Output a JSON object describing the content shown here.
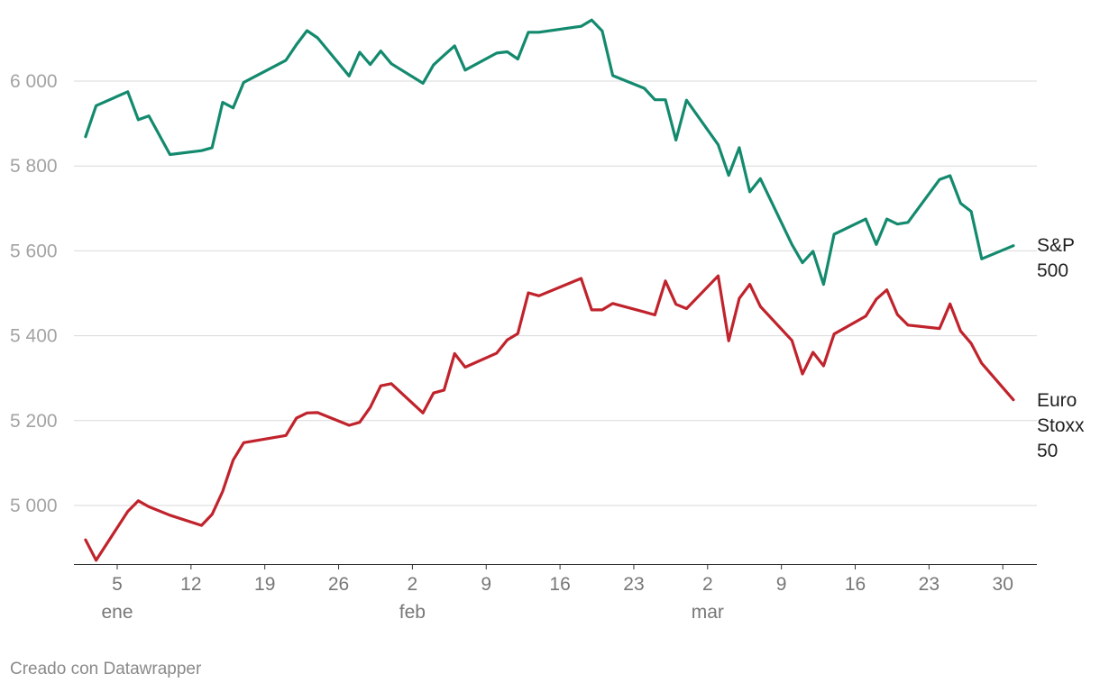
{
  "chart_data": {
    "type": "line",
    "title": "",
    "xlabel": "",
    "ylabel": "",
    "ylim": [
      4850,
      6150
    ],
    "y_ticks": [
      5000,
      5200,
      5400,
      5600,
      5800,
      6000
    ],
    "y_tick_labels": [
      "5 000",
      "5 200",
      "5 400",
      "5 600",
      "5 800",
      "6 000"
    ],
    "x_range": [
      "2025-01-02",
      "2025-03-31"
    ],
    "x_ticks": [
      {
        "date": "2025-01-05",
        "label": "5",
        "month": "ene"
      },
      {
        "date": "2025-01-12",
        "label": "12",
        "month": ""
      },
      {
        "date": "2025-01-19",
        "label": "19",
        "month": ""
      },
      {
        "date": "2025-01-26",
        "label": "26",
        "month": ""
      },
      {
        "date": "2025-02-02",
        "label": "2",
        "month": "feb"
      },
      {
        "date": "2025-02-09",
        "label": "9",
        "month": ""
      },
      {
        "date": "2025-02-16",
        "label": "16",
        "month": ""
      },
      {
        "date": "2025-02-23",
        "label": "23",
        "month": ""
      },
      {
        "date": "2025-03-02",
        "label": "2",
        "month": "mar"
      },
      {
        "date": "2025-03-09",
        "label": "9",
        "month": ""
      },
      {
        "date": "2025-03-16",
        "label": "16",
        "month": ""
      },
      {
        "date": "2025-03-23",
        "label": "23",
        "month": ""
      },
      {
        "date": "2025-03-30",
        "label": "30",
        "month": ""
      }
    ],
    "grid": true,
    "series": [
      {
        "name": "S&P 500",
        "label_lines": [
          "S&P",
          "500"
        ],
        "color": "#138a6e",
        "points": [
          [
            "2025-01-02",
            5869
          ],
          [
            "2025-01-03",
            5942
          ],
          [
            "2025-01-06",
            5975
          ],
          [
            "2025-01-07",
            5909
          ],
          [
            "2025-01-08",
            5918
          ],
          [
            "2025-01-10",
            5827
          ],
          [
            "2025-01-13",
            5836
          ],
          [
            "2025-01-14",
            5843
          ],
          [
            "2025-01-15",
            5950
          ],
          [
            "2025-01-16",
            5937
          ],
          [
            "2025-01-17",
            5997
          ],
          [
            "2025-01-21",
            6049
          ],
          [
            "2025-01-22",
            6086
          ],
          [
            "2025-01-23",
            6119
          ],
          [
            "2025-01-24",
            6102
          ],
          [
            "2025-01-27",
            6012
          ],
          [
            "2025-01-28",
            6068
          ],
          [
            "2025-01-29",
            6039
          ],
          [
            "2025-01-30",
            6071
          ],
          [
            "2025-01-31",
            6041
          ],
          [
            "2025-02-03",
            5995
          ],
          [
            "2025-02-04",
            6038
          ],
          [
            "2025-02-05",
            6061
          ],
          [
            "2025-02-06",
            6083
          ],
          [
            "2025-02-07",
            6026
          ],
          [
            "2025-02-10",
            6066
          ],
          [
            "2025-02-11",
            6069
          ],
          [
            "2025-02-12",
            6052
          ],
          [
            "2025-02-13",
            6115
          ],
          [
            "2025-02-14",
            6115
          ],
          [
            "2025-02-18",
            6129
          ],
          [
            "2025-02-19",
            6144
          ],
          [
            "2025-02-20",
            6118
          ],
          [
            "2025-02-21",
            6013
          ],
          [
            "2025-02-24",
            5983
          ],
          [
            "2025-02-25",
            5956
          ],
          [
            "2025-02-26",
            5956
          ],
          [
            "2025-02-27",
            5861
          ],
          [
            "2025-02-28",
            5955
          ],
          [
            "2025-03-03",
            5850
          ],
          [
            "2025-03-04",
            5778
          ],
          [
            "2025-03-05",
            5843
          ],
          [
            "2025-03-06",
            5739
          ],
          [
            "2025-03-07",
            5770
          ],
          [
            "2025-03-10",
            5615
          ],
          [
            "2025-03-11",
            5572
          ],
          [
            "2025-03-12",
            5599
          ],
          [
            "2025-03-13",
            5521
          ],
          [
            "2025-03-14",
            5639
          ],
          [
            "2025-03-17",
            5675
          ],
          [
            "2025-03-18",
            5615
          ],
          [
            "2025-03-19",
            5675
          ],
          [
            "2025-03-20",
            5663
          ],
          [
            "2025-03-21",
            5667
          ],
          [
            "2025-03-24",
            5768
          ],
          [
            "2025-03-25",
            5777
          ],
          [
            "2025-03-26",
            5712
          ],
          [
            "2025-03-27",
            5693
          ],
          [
            "2025-03-28",
            5581
          ],
          [
            "2025-03-31",
            5612
          ]
        ]
      },
      {
        "name": "Euro Stoxx 50",
        "label_lines": [
          "Euro",
          "Stoxx",
          "50"
        ],
        "color": "#c0232c",
        "points": [
          [
            "2025-01-02",
            4919
          ],
          [
            "2025-01-03",
            4871
          ],
          [
            "2025-01-06",
            4986
          ],
          [
            "2025-01-07",
            5011
          ],
          [
            "2025-01-08",
            4997
          ],
          [
            "2025-01-10",
            4977
          ],
          [
            "2025-01-13",
            4953
          ],
          [
            "2025-01-14",
            4979
          ],
          [
            "2025-01-15",
            5033
          ],
          [
            "2025-01-16",
            5107
          ],
          [
            "2025-01-17",
            5148
          ],
          [
            "2025-01-21",
            5165
          ],
          [
            "2025-01-22",
            5206
          ],
          [
            "2025-01-23",
            5218
          ],
          [
            "2025-01-24",
            5219
          ],
          [
            "2025-01-27",
            5189
          ],
          [
            "2025-01-28",
            5196
          ],
          [
            "2025-01-29",
            5231
          ],
          [
            "2025-01-30",
            5282
          ],
          [
            "2025-01-31",
            5287
          ],
          [
            "2025-02-03",
            5218
          ],
          [
            "2025-02-04",
            5265
          ],
          [
            "2025-02-05",
            5272
          ],
          [
            "2025-02-06",
            5358
          ],
          [
            "2025-02-07",
            5326
          ],
          [
            "2025-02-10",
            5359
          ],
          [
            "2025-02-11",
            5390
          ],
          [
            "2025-02-12",
            5405
          ],
          [
            "2025-02-13",
            5501
          ],
          [
            "2025-02-14",
            5494
          ],
          [
            "2025-02-18",
            5535
          ],
          [
            "2025-02-19",
            5461
          ],
          [
            "2025-02-20",
            5461
          ],
          [
            "2025-02-21",
            5476
          ],
          [
            "2025-02-24",
            5456
          ],
          [
            "2025-02-25",
            5449
          ],
          [
            "2025-02-26",
            5529
          ],
          [
            "2025-02-27",
            5474
          ],
          [
            "2025-02-28",
            5464
          ],
          [
            "2025-03-03",
            5541
          ],
          [
            "2025-03-04",
            5388
          ],
          [
            "2025-03-05",
            5488
          ],
          [
            "2025-03-06",
            5521
          ],
          [
            "2025-03-07",
            5469
          ],
          [
            "2025-03-10",
            5389
          ],
          [
            "2025-03-11",
            5310
          ],
          [
            "2025-03-12",
            5361
          ],
          [
            "2025-03-13",
            5329
          ],
          [
            "2025-03-14",
            5404
          ],
          [
            "2025-03-17",
            5446
          ],
          [
            "2025-03-18",
            5486
          ],
          [
            "2025-03-19",
            5508
          ],
          [
            "2025-03-20",
            5450
          ],
          [
            "2025-03-21",
            5425
          ],
          [
            "2025-03-24",
            5417
          ],
          [
            "2025-03-25",
            5475
          ],
          [
            "2025-03-26",
            5411
          ],
          [
            "2025-03-27",
            5382
          ],
          [
            "2025-03-28",
            5335
          ],
          [
            "2025-03-31",
            5249
          ]
        ]
      }
    ]
  },
  "footer": {
    "credit": "Creado con Datawrapper"
  }
}
